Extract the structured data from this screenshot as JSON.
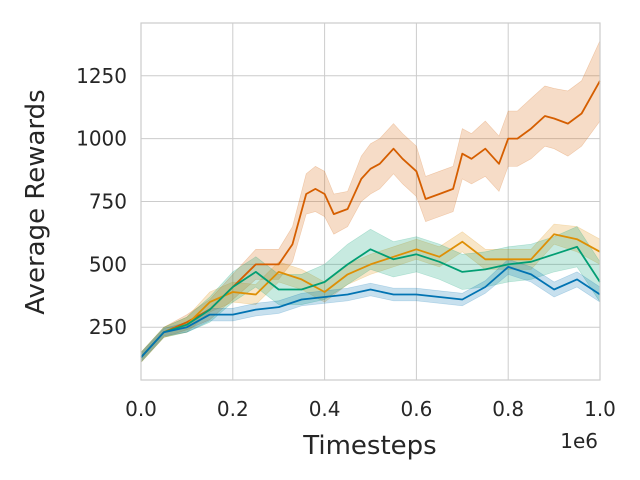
{
  "chart_data": {
    "type": "line",
    "xlabel": "Timesteps",
    "ylabel": "Average Rewards",
    "x_offset_label": "1e6",
    "xlim": [
      0.0,
      1.0
    ],
    "ylim": [
      40,
      1460
    ],
    "xticks": [
      0.0,
      0.2,
      0.4,
      0.6,
      0.8,
      1.0
    ],
    "xtick_labels": [
      "0.0",
      "0.2",
      "0.4",
      "0.6",
      "0.8",
      "1.0"
    ],
    "yticks": [
      250,
      500,
      750,
      1000,
      1250
    ],
    "ytick_labels": [
      "250",
      "500",
      "750",
      "1000",
      "1250"
    ],
    "grid": true,
    "legend": "none",
    "shaded_band": true,
    "colors": {
      "orange": "#d55e00",
      "yellow": "#de8f05",
      "green": "#029e73",
      "blue": "#0173b2"
    },
    "series": [
      {
        "color": "#d55e00",
        "x": [
          0.0,
          0.05,
          0.1,
          0.15,
          0.2,
          0.25,
          0.3,
          0.33,
          0.36,
          0.38,
          0.4,
          0.42,
          0.45,
          0.48,
          0.5,
          0.52,
          0.55,
          0.57,
          0.6,
          0.62,
          0.65,
          0.68,
          0.7,
          0.72,
          0.75,
          0.78,
          0.8,
          0.82,
          0.85,
          0.88,
          0.9,
          0.93,
          0.96,
          1.0
        ],
        "y": [
          130,
          230,
          270,
          320,
          410,
          500,
          500,
          580,
          780,
          800,
          780,
          700,
          720,
          840,
          880,
          900,
          960,
          920,
          870,
          760,
          780,
          800,
          940,
          920,
          960,
          900,
          1000,
          1000,
          1040,
          1090,
          1080,
          1060,
          1100,
          1230
        ],
        "band": [
          20,
          20,
          30,
          40,
          50,
          60,
          60,
          70,
          80,
          90,
          90,
          80,
          70,
          90,
          100,
          100,
          100,
          100,
          100,
          90,
          90,
          90,
          100,
          100,
          110,
          110,
          110,
          110,
          120,
          120,
          120,
          130,
          130,
          160
        ]
      },
      {
        "color": "#de8f05",
        "x": [
          0.0,
          0.05,
          0.1,
          0.15,
          0.2,
          0.25,
          0.3,
          0.35,
          0.4,
          0.45,
          0.5,
          0.55,
          0.6,
          0.65,
          0.7,
          0.75,
          0.8,
          0.85,
          0.9,
          0.95,
          1.0
        ],
        "y": [
          130,
          230,
          260,
          350,
          390,
          380,
          470,
          440,
          390,
          460,
          500,
          530,
          560,
          530,
          590,
          520,
          520,
          520,
          620,
          600,
          550
        ],
        "band": [
          20,
          20,
          30,
          40,
          40,
          40,
          40,
          40,
          40,
          40,
          40,
          40,
          40,
          40,
          40,
          40,
          40,
          40,
          40,
          50,
          50
        ]
      },
      {
        "color": "#029e73",
        "x": [
          0.0,
          0.05,
          0.1,
          0.15,
          0.2,
          0.25,
          0.3,
          0.35,
          0.4,
          0.45,
          0.5,
          0.55,
          0.6,
          0.65,
          0.7,
          0.75,
          0.8,
          0.85,
          0.9,
          0.95,
          1.0
        ],
        "y": [
          130,
          230,
          260,
          320,
          410,
          470,
          400,
          400,
          430,
          500,
          560,
          520,
          540,
          510,
          470,
          480,
          500,
          510,
          540,
          570,
          430
        ],
        "band": [
          20,
          20,
          30,
          50,
          60,
          60,
          60,
          60,
          70,
          80,
          80,
          70,
          70,
          70,
          70,
          70,
          70,
          70,
          70,
          80,
          80
        ]
      },
      {
        "color": "#0173b2",
        "x": [
          0.0,
          0.05,
          0.1,
          0.15,
          0.2,
          0.25,
          0.3,
          0.35,
          0.4,
          0.45,
          0.5,
          0.55,
          0.6,
          0.65,
          0.7,
          0.75,
          0.8,
          0.85,
          0.9,
          0.95,
          1.0
        ],
        "y": [
          130,
          230,
          250,
          300,
          300,
          320,
          330,
          360,
          370,
          380,
          400,
          380,
          380,
          370,
          360,
          410,
          490,
          460,
          400,
          440,
          380
        ],
        "band": [
          15,
          15,
          20,
          25,
          25,
          25,
          25,
          25,
          25,
          25,
          25,
          25,
          25,
          25,
          25,
          25,
          30,
          30,
          30,
          30,
          30
        ]
      }
    ]
  }
}
